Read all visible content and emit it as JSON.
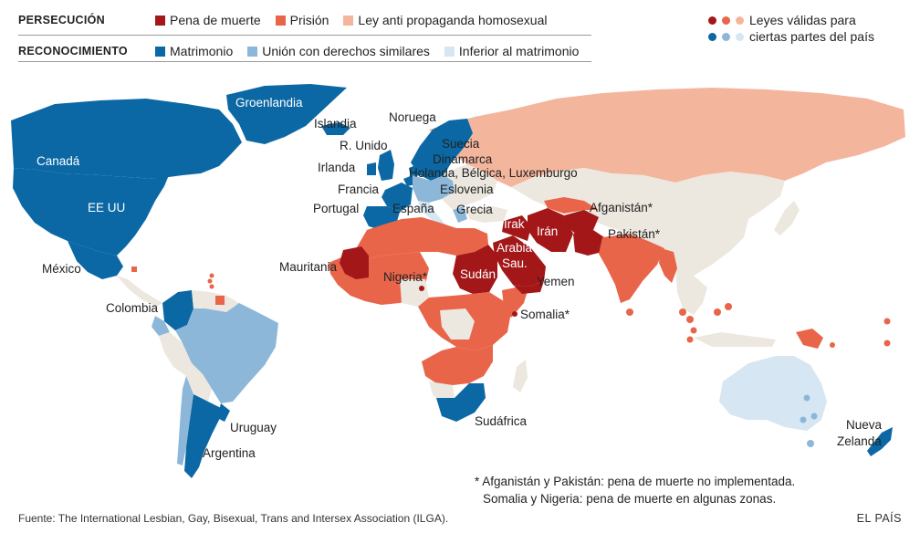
{
  "legend": {
    "persecution": {
      "label": "PERSECUCIÓN",
      "items": [
        {
          "label": "Pena de muerte",
          "color": "#a31719"
        },
        {
          "label": "Prisión",
          "color": "#e8654a"
        },
        {
          "label": "Ley anti propaganda homosexual",
          "color": "#f4b59d"
        }
      ]
    },
    "recognition": {
      "label": "RECONOCIMIENTO",
      "items": [
        {
          "label": "Matrimonio",
          "color": "#0b68a4"
        },
        {
          "label": "Unión con derechos similares",
          "color": "#8db7d9"
        },
        {
          "label": "Inferior al matrimonio",
          "color": "#d6e6f2"
        }
      ]
    },
    "partial": {
      "line1": "Leyes válidas para",
      "line2": "ciertas partes del país",
      "red_colors": [
        "#a31719",
        "#e8654a",
        "#f4b59d"
      ],
      "blue_colors": [
        "#0b68a4",
        "#8db7d9",
        "#d6e6f2"
      ]
    }
  },
  "colors": {
    "neutral": "#ece8df",
    "death": "#a31719",
    "prison": "#e8654a",
    "propaganda": "#f4b59d",
    "marriage": "#0b68a4",
    "union": "#8db7d9",
    "inferior": "#d6e6f2"
  },
  "labels": {
    "groenlandia": "Groenlandia",
    "islandia": "Islandia",
    "noruega": "Noruega",
    "runido": "R. Unido",
    "suecia": "Suecia",
    "dinamarca": "Dinamarca",
    "irlanda": "Irlanda",
    "benelux": "Holanda, Bélgica, Luxemburgo",
    "francia": "Francia",
    "eslovenia": "Eslovenia",
    "portugal": "Portugal",
    "espana": "España",
    "grecia": "Grecia",
    "canada": "Canadá",
    "eeuu": "EE UU",
    "mexico": "México",
    "colombia": "Colombia",
    "uruguay": "Uruguay",
    "argentina": "Argentina",
    "mauritania": "Mauritania",
    "nigeria": "Nigeria*",
    "sudan": "Sudán",
    "arabia1": "Arabia",
    "arabia2": "Sau.",
    "yemen": "Yemen",
    "somalia": "Somalia*",
    "irak": "Irak",
    "iran": "Irán",
    "afganistan": "Afganistán*",
    "pakistan": "Pakistán*",
    "sudafrica": "Sudáfrica",
    "nz1": "Nueva",
    "nz2": "Zelanda"
  },
  "footnote": {
    "line1": "* Afganistán y Pakistán: pena de muerte no implementada.",
    "line2": "Somalia y Nigeria: pena de muerte en algunas zonas."
  },
  "source": "Fuente: The International Lesbian, Gay, Bisexual, Trans and Intersex Association (ILGA).",
  "brand": "EL PAÍS"
}
